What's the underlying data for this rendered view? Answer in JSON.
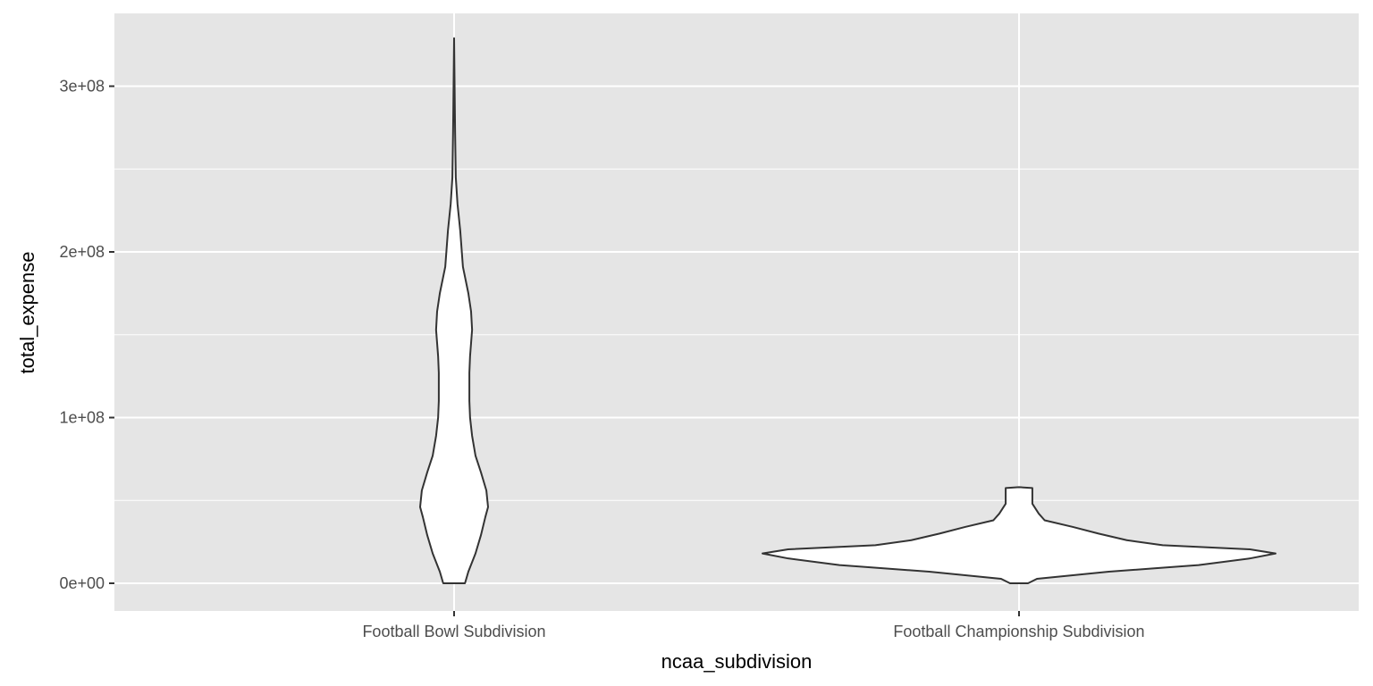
{
  "chart_data": {
    "type": "violin",
    "title": "",
    "xlabel": "ncaa_subdivision",
    "ylabel": "total_expense",
    "categories": [
      "Football Bowl Subdivision",
      "Football Championship Subdivision"
    ],
    "ylim": [
      -17000000.0,
      345000000.0
    ],
    "yticks": [
      0,
      100000000,
      200000000,
      300000000
    ],
    "ytick_labels": [
      "0e+00",
      "1e+08",
      "2e+08",
      "3e+08"
    ],
    "grid": true,
    "violins": [
      {
        "category": "Football Bowl Subdivision",
        "y": [
          0,
          7000000.0,
          18000000.0,
          29000000.0,
          40000000.0,
          46000000.0,
          56000000.0,
          67000000.0,
          77000000.0,
          89000000.0,
          100000000.0,
          110000000.0,
          127000000.0,
          137000000.0,
          153000000.0,
          164000000.0,
          175000000.0,
          191000000.0,
          213000000.0,
          229000000.0,
          245000000.0,
          272000000.0,
          329000000.0
        ],
        "density": [
          0.32,
          0.42,
          0.63,
          0.79,
          0.92,
          1.0,
          0.95,
          0.79,
          0.63,
          0.53,
          0.47,
          0.45,
          0.45,
          0.47,
          0.53,
          0.5,
          0.42,
          0.26,
          0.18,
          0.1,
          0.05,
          0.03,
          0.0
        ]
      },
      {
        "category": "Football Championship Subdivision",
        "y": [
          0,
          2700000.0,
          7000000.0,
          11000000.0,
          15000000.0,
          18000000.0,
          20500000.0,
          23000000.0,
          26000000.0,
          30000000.0,
          34000000.0,
          38000000.0,
          42000000.0,
          48000000.0,
          53000000.0,
          57500000.0,
          58000000.0
        ],
        "density": [
          0.035,
          0.07,
          0.35,
          0.7,
          0.9,
          1.0,
          0.9,
          0.56,
          0.42,
          0.31,
          0.21,
          0.1,
          0.077,
          0.052,
          0.052,
          0.052,
          0.0
        ]
      }
    ]
  }
}
